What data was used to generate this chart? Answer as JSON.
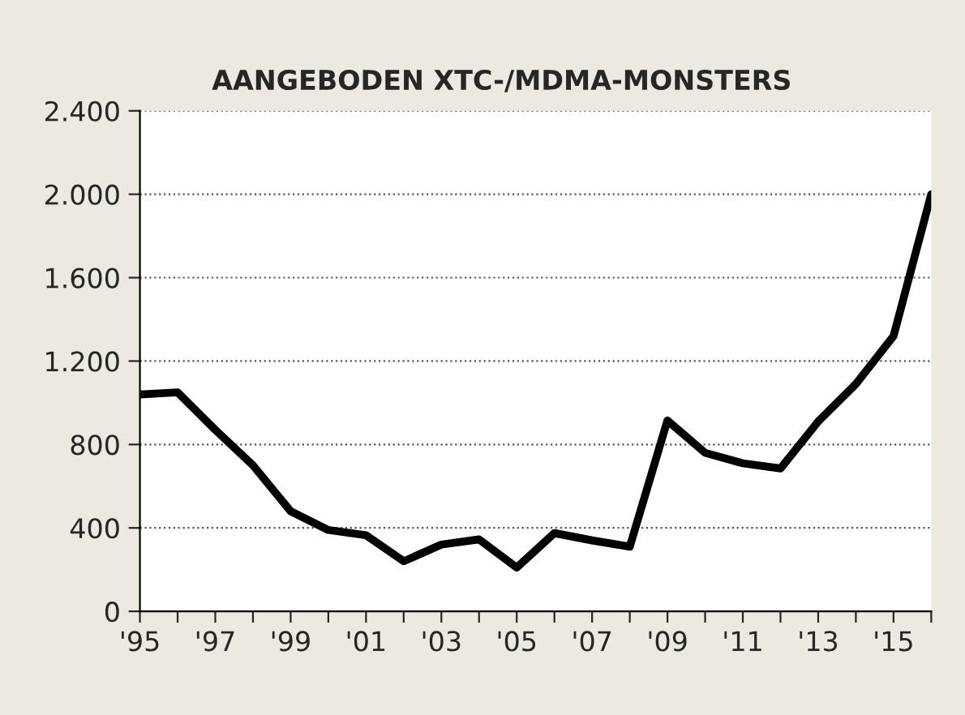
{
  "chart_data": {
    "type": "line",
    "title": "AANGEBODEN XTC-/MDMA-MONSTERS",
    "categories": [
      "'95",
      null,
      "'97",
      null,
      "'99",
      null,
      "'01",
      null,
      "'03",
      null,
      "'05",
      null,
      "'07",
      null,
      "'09",
      null,
      "'11",
      null,
      "'13",
      null,
      "'15",
      null
    ],
    "series": [
      {
        "color": "#000000",
        "values": [
          1040,
          1050,
          870,
          700,
          480,
          390,
          365,
          240,
          320,
          345,
          210,
          375,
          340,
          310,
          915,
          760,
          710,
          685,
          910,
          1090,
          1320,
          2000
        ]
      }
    ],
    "ylim": [
      0,
      2400
    ],
    "yticks": [
      0,
      400,
      800,
      {
        "value": 1200,
        "label": "1.200"
      },
      {
        "value": 1600,
        "label": "1.600"
      },
      {
        "value": 2000,
        "label": "2.000"
      },
      {
        "value": 2400,
        "label": "2.400"
      }
    ],
    "grid": "y",
    "legend": false,
    "marker": "none",
    "line_style": "solid"
  }
}
